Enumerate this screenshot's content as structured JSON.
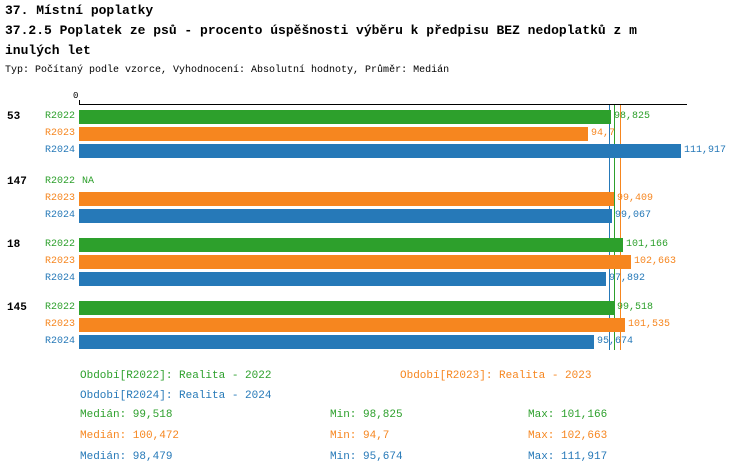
{
  "header": {
    "line1": "37. Místní poplatky",
    "line2": "37.2.5 Poplatek ze psů - procento úspěšnosti výběru k předpisu BEZ nedoplatků z m",
    "line3": "inulých let",
    "meta": "Typ: Počítaný podle vzorce, Vyhodnocení: Absolutní hodnoty, Průměr: Medián"
  },
  "colors": {
    "r2022": "#2da02c",
    "r2023": "#f6861f",
    "r2024": "#2679b8",
    "axis": "#000000"
  },
  "chart_data": {
    "type": "bar",
    "orientation": "horizontal",
    "x_axis": {
      "origin_label": "0",
      "min": 0,
      "max": 113
    },
    "series_names": [
      "R2022",
      "R2023",
      "R2024"
    ],
    "groups": [
      {
        "label": "53",
        "bars": [
          {
            "series": "R2022",
            "value": 98.825,
            "display": "98,825"
          },
          {
            "series": "R2023",
            "value": 94.7,
            "display": "94,7"
          },
          {
            "series": "R2024",
            "value": 111.917,
            "display": "111,917"
          }
        ]
      },
      {
        "label": "147",
        "bars": [
          {
            "series": "R2022",
            "value": null,
            "display": "NA"
          },
          {
            "series": "R2023",
            "value": 99.409,
            "display": "99,409"
          },
          {
            "series": "R2024",
            "value": 99.067,
            "display": "99,067"
          }
        ]
      },
      {
        "label": "18",
        "bars": [
          {
            "series": "R2022",
            "value": 101.166,
            "display": "101,166"
          },
          {
            "series": "R2023",
            "value": 102.663,
            "display": "102,663"
          },
          {
            "series": "R2024",
            "value": 97.892,
            "display": "97,892"
          }
        ]
      },
      {
        "label": "145",
        "bars": [
          {
            "series": "R2022",
            "value": 99.518,
            "display": "99,518"
          },
          {
            "series": "R2023",
            "value": 101.535,
            "display": "101,535"
          },
          {
            "series": "R2024",
            "value": 95.674,
            "display": "95,674"
          }
        ]
      }
    ],
    "medians": [
      {
        "series": "R2022",
        "value": 99.518
      },
      {
        "series": "R2023",
        "value": 100.472
      },
      {
        "series": "R2024",
        "value": 98.479
      }
    ]
  },
  "legend": [
    {
      "series": "R2022",
      "label": "Období[R2022]: Realita - 2022"
    },
    {
      "series": "R2023",
      "label": "Období[R2023]: Realita - 2023"
    },
    {
      "series": "R2024",
      "label": "Období[R2024]: Realita - 2024"
    }
  ],
  "stats": [
    {
      "series": "R2022",
      "median": "Medián: 99,518",
      "min": "Min: 98,825",
      "max": "Max: 101,166"
    },
    {
      "series": "R2023",
      "median": "Medián: 100,472",
      "min": "Min: 94,7",
      "max": "Max: 102,663"
    },
    {
      "series": "R2024",
      "median": "Medián: 98,479",
      "min": "Min: 95,674",
      "max": "Max: 111,917"
    }
  ]
}
